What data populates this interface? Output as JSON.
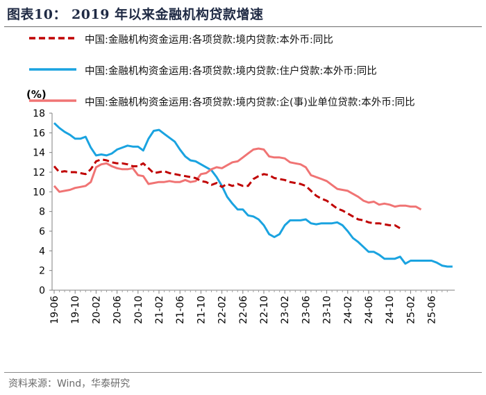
{
  "figure_title": "图表10：  2019 年以来金融机构贷款增速",
  "source_note": "资料来源：Wind，华泰研究",
  "chart_data": {
    "type": "line",
    "title": "2019 年以来金融机构贷款增速",
    "ylabel": "(%)",
    "xlabel": "",
    "ylim": [
      0,
      18
    ],
    "yticks": [
      0,
      2,
      4,
      6,
      8,
      10,
      12,
      14,
      16,
      18
    ],
    "grid": false,
    "legend_position": "top",
    "x_tick_labels": [
      "19-06",
      "19-10",
      "20-02",
      "20-06",
      "20-10",
      "21-02",
      "21-06",
      "21-10",
      "22-02",
      "22-06",
      "22-10",
      "23-02",
      "23-06",
      "23-10",
      "24-02",
      "24-06",
      "24-10",
      "25-02",
      "25-06"
    ],
    "series": [
      {
        "name": "中国:金融机构资金运用:各项贷款:境内贷款:本外币:同比",
        "color": "#c00000",
        "style": "dashed",
        "values": [
          12.6,
          12.0,
          12.1,
          12.0,
          12.0,
          11.9,
          11.8,
          12.3,
          13.1,
          13.3,
          13.2,
          13.0,
          12.9,
          12.9,
          12.8,
          12.6,
          12.6,
          12.9,
          12.4,
          11.9,
          12.0,
          12.1,
          11.9,
          11.8,
          11.7,
          11.6,
          11.5,
          11.4,
          11.1,
          11.0,
          10.7,
          10.9,
          10.5,
          10.8,
          10.6,
          10.8,
          10.6,
          10.6,
          11.3,
          11.6,
          11.8,
          11.7,
          11.4,
          11.3,
          11.2,
          11.0,
          10.9,
          10.8,
          10.6,
          10.1,
          9.6,
          9.3,
          9.1,
          8.7,
          8.3,
          8.1,
          7.8,
          7.5,
          7.2,
          7.1,
          6.9,
          6.8,
          6.8,
          6.7,
          6.6,
          6.6,
          6.3
        ]
      },
      {
        "name": "中国:金融机构资金运用:各项贷款:境内贷款:住户贷款:本外币:同比",
        "color": "#1aa3e0",
        "style": "solid",
        "values": [
          17.0,
          16.5,
          16.1,
          15.8,
          15.4,
          15.4,
          15.6,
          14.5,
          13.7,
          13.8,
          13.7,
          13.9,
          14.3,
          14.5,
          14.7,
          14.6,
          14.6,
          14.2,
          15.4,
          16.2,
          16.3,
          15.9,
          15.5,
          15.1,
          14.3,
          13.6,
          13.2,
          13.1,
          12.8,
          12.5,
          12.2,
          11.5,
          10.6,
          9.5,
          8.8,
          8.2,
          8.2,
          7.6,
          7.5,
          7.2,
          6.6,
          5.7,
          5.4,
          5.7,
          6.6,
          7.1,
          7.1,
          7.1,
          7.2,
          6.8,
          6.7,
          6.8,
          6.8,
          6.8,
          6.9,
          6.6,
          6.0,
          5.3,
          4.9,
          4.4,
          3.9,
          3.9,
          3.6,
          3.2,
          3.2,
          3.2,
          3.4,
          2.7,
          3.0,
          3.0,
          3.0,
          3.0,
          3.0,
          2.8,
          2.5,
          2.4,
          2.4
        ]
      },
      {
        "name": "中国:金融机构资金运用:各项贷款:境内贷款:企(事)业单位贷款:本外币:同比",
        "color": "#f07474",
        "style": "solid",
        "values": [
          10.6,
          10.0,
          10.1,
          10.2,
          10.4,
          10.5,
          10.6,
          11.0,
          12.5,
          12.8,
          12.9,
          12.6,
          12.4,
          12.3,
          12.3,
          12.4,
          11.7,
          11.6,
          10.8,
          10.9,
          11.0,
          11.0,
          11.1,
          11.0,
          11.0,
          11.2,
          11.0,
          11.1,
          11.8,
          11.9,
          12.3,
          12.5,
          12.4,
          12.7,
          13.0,
          13.1,
          13.5,
          13.9,
          14.3,
          14.4,
          14.3,
          13.6,
          13.5,
          13.5,
          13.4,
          13.0,
          12.9,
          12.8,
          12.5,
          11.7,
          11.5,
          11.3,
          11.1,
          10.7,
          10.3,
          10.2,
          10.1,
          9.8,
          9.5,
          9.1,
          8.9,
          9.0,
          8.7,
          8.8,
          8.7,
          8.5,
          8.6,
          8.6,
          8.5,
          8.5,
          8.2
        ]
      }
    ]
  }
}
